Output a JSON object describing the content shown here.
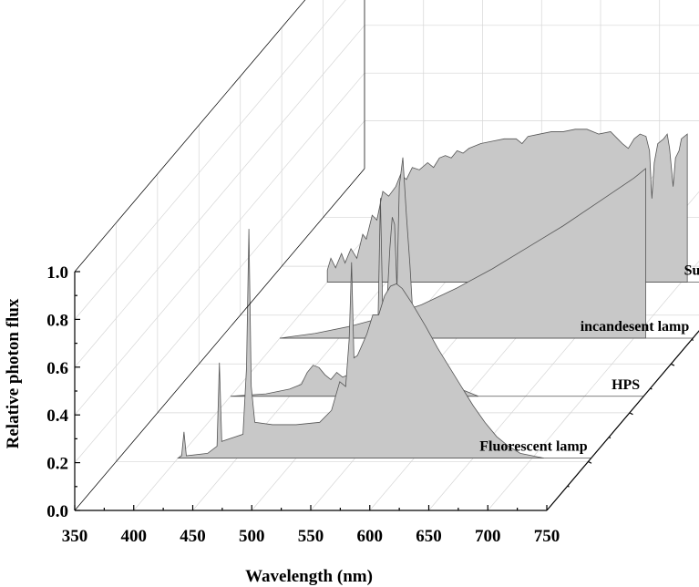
{
  "chart_data": {
    "type": "area",
    "style": "3d-waterfall",
    "xlabel": "Wavelength (nm)",
    "ylabel": "Relative photon flux",
    "xlim": [
      350,
      750
    ],
    "ylim": [
      0.0,
      1.0
    ],
    "x_ticks": [
      "350",
      "400",
      "450",
      "500",
      "550",
      "600",
      "650",
      "700",
      "750"
    ],
    "y_ticks": [
      "0.0",
      "0.2",
      "0.4",
      "0.6",
      "0.8",
      "1.0"
    ],
    "grid": true,
    "series": [
      {
        "name": "Fluorescent lamp",
        "points": [
          [
            400,
            0.0
          ],
          [
            403,
            0.01
          ],
          [
            405,
            0.11
          ],
          [
            407,
            0.01
          ],
          [
            425,
            0.02
          ],
          [
            433,
            0.05
          ],
          [
            435,
            0.4
          ],
          [
            437,
            0.07
          ],
          [
            455,
            0.1
          ],
          [
            458,
            0.38
          ],
          [
            460,
            0.96
          ],
          [
            462,
            0.3
          ],
          [
            465,
            0.15
          ],
          [
            480,
            0.14
          ],
          [
            500,
            0.14
          ],
          [
            520,
            0.15
          ],
          [
            530,
            0.2
          ],
          [
            537,
            0.32
          ],
          [
            542,
            0.3
          ],
          [
            545,
            0.5
          ],
          [
            547,
            0.82
          ],
          [
            549,
            0.42
          ],
          [
            552,
            0.43
          ],
          [
            560,
            0.52
          ],
          [
            565,
            0.6
          ],
          [
            570,
            0.6
          ],
          [
            575,
            0.68
          ],
          [
            580,
            0.72
          ],
          [
            585,
            0.73
          ],
          [
            590,
            0.71
          ],
          [
            598,
            0.65
          ],
          [
            610,
            0.55
          ],
          [
            620,
            0.46
          ],
          [
            630,
            0.38
          ],
          [
            640,
            0.3
          ],
          [
            650,
            0.22
          ],
          [
            660,
            0.15
          ],
          [
            670,
            0.09
          ],
          [
            680,
            0.05
          ],
          [
            690,
            0.02
          ],
          [
            700,
            0.01
          ],
          [
            710,
            0.0
          ]
        ]
      },
      {
        "name": "HPS",
        "points": [
          [
            400,
            0.0
          ],
          [
            430,
            0.01
          ],
          [
            450,
            0.03
          ],
          [
            460,
            0.05
          ],
          [
            465,
            0.1
          ],
          [
            470,
            0.13
          ],
          [
            475,
            0.12
          ],
          [
            480,
            0.09
          ],
          [
            485,
            0.07
          ],
          [
            490,
            0.1
          ],
          [
            495,
            0.08
          ],
          [
            500,
            0.09
          ],
          [
            505,
            0.12
          ],
          [
            510,
            0.09
          ],
          [
            518,
            0.12
          ],
          [
            525,
            0.32
          ],
          [
            527,
            0.83
          ],
          [
            529,
            0.35
          ],
          [
            532,
            0.34
          ],
          [
            535,
            0.62
          ],
          [
            537,
            0.75
          ],
          [
            539,
            0.72
          ],
          [
            541,
            0.45
          ],
          [
            543,
            0.88
          ],
          [
            546,
            1.0
          ],
          [
            549,
            0.76
          ],
          [
            552,
            0.55
          ],
          [
            555,
            0.3
          ],
          [
            558,
            0.35
          ],
          [
            561,
            0.2
          ],
          [
            565,
            0.15
          ],
          [
            570,
            0.09
          ],
          [
            580,
            0.06
          ],
          [
            590,
            0.04
          ],
          [
            600,
            0.02
          ],
          [
            610,
            0.0
          ]
        ]
      },
      {
        "name": "incandesent lamp",
        "points": [
          [
            400,
            0.0
          ],
          [
            430,
            0.02
          ],
          [
            460,
            0.05
          ],
          [
            490,
            0.09
          ],
          [
            520,
            0.14
          ],
          [
            550,
            0.21
          ],
          [
            580,
            0.29
          ],
          [
            610,
            0.38
          ],
          [
            640,
            0.47
          ],
          [
            670,
            0.57
          ],
          [
            700,
            0.67
          ],
          [
            710,
            0.71
          ]
        ]
      },
      {
        "name": "Sunlight",
        "points": [
          [
            400,
            0.05
          ],
          [
            403,
            0.1
          ],
          [
            407,
            0.06
          ],
          [
            412,
            0.12
          ],
          [
            415,
            0.08
          ],
          [
            420,
            0.14
          ],
          [
            425,
            0.1
          ],
          [
            430,
            0.2
          ],
          [
            433,
            0.18
          ],
          [
            438,
            0.28
          ],
          [
            442,
            0.26
          ],
          [
            447,
            0.38
          ],
          [
            452,
            0.36
          ],
          [
            458,
            0.4
          ],
          [
            462,
            0.45
          ],
          [
            467,
            0.43
          ],
          [
            472,
            0.48
          ],
          [
            478,
            0.47
          ],
          [
            485,
            0.5
          ],
          [
            490,
            0.48
          ],
          [
            495,
            0.52
          ],
          [
            500,
            0.53
          ],
          [
            505,
            0.52
          ],
          [
            510,
            0.55
          ],
          [
            515,
            0.54
          ],
          [
            520,
            0.56
          ],
          [
            530,
            0.58
          ],
          [
            540,
            0.59
          ],
          [
            550,
            0.6
          ],
          [
            560,
            0.6
          ],
          [
            565,
            0.58
          ],
          [
            570,
            0.61
          ],
          [
            580,
            0.62
          ],
          [
            590,
            0.63
          ],
          [
            600,
            0.63
          ],
          [
            610,
            0.64
          ],
          [
            620,
            0.64
          ],
          [
            630,
            0.62
          ],
          [
            640,
            0.63
          ],
          [
            650,
            0.58
          ],
          [
            655,
            0.56
          ],
          [
            660,
            0.6
          ],
          [
            665,
            0.62
          ],
          [
            670,
            0.61
          ],
          [
            673,
            0.55
          ],
          [
            675,
            0.35
          ],
          [
            677,
            0.5
          ],
          [
            680,
            0.58
          ],
          [
            685,
            0.6
          ],
          [
            688,
            0.62
          ],
          [
            690,
            0.56
          ],
          [
            693,
            0.4
          ],
          [
            695,
            0.52
          ],
          [
            698,
            0.55
          ],
          [
            700,
            0.6
          ],
          [
            705,
            0.62
          ]
        ]
      }
    ]
  }
}
